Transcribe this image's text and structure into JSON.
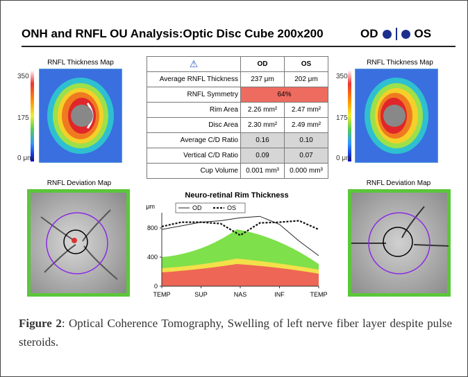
{
  "header": {
    "title": "ONH and RNFL OU Analysis:Optic Disc Cube 200x200",
    "od": "OD",
    "os": "OS"
  },
  "left_panel": {
    "thickness_title": "RNFL Thickness Map",
    "scale": [
      "350",
      "175",
      "0 μm"
    ],
    "deviation_title": "RNFL Deviation Map"
  },
  "right_panel": {
    "thickness_title": "RNFL Thickness Map",
    "scale": [
      "350",
      "175",
      "0 μm"
    ],
    "deviation_title": "RNFL Deviation Map"
  },
  "table": {
    "columns": [
      "OD",
      "OS"
    ],
    "rows": [
      [
        "Average RNFL Thickness",
        "237 μm",
        "202 μm"
      ],
      [
        "RNFL Symmetry",
        "64%"
      ],
      [
        "Rim Area",
        "2.26 mm²",
        "2.47 mm²"
      ],
      [
        "Disc Area",
        "2.30 mm²",
        "2.49 mm²"
      ],
      [
        "Average C/D Ratio",
        "0.16",
        "0.10"
      ],
      [
        "Vertical C/D Ratio",
        "0.09",
        "0.07"
      ],
      [
        "Cup Volume",
        "0.001 mm³",
        "0.000 mm³"
      ]
    ]
  },
  "rim_chart": {
    "type": "line",
    "title": "Neuro-retinal Rim Thickness",
    "y_unit": "μm",
    "x": [
      0,
      0.5,
      1,
      1.5,
      2,
      2.5,
      3,
      3.5,
      4
    ],
    "xlim": [
      0,
      4
    ],
    "xticks": [
      {
        "value": 0,
        "label": "TEMP"
      },
      {
        "value": 1,
        "label": "SUP"
      },
      {
        "value": 2,
        "label": "NAS"
      },
      {
        "value": 3,
        "label": "INF"
      },
      {
        "value": 4,
        "label": "TEMP"
      }
    ],
    "ylim": [
      0,
      1000
    ],
    "yticks": [
      0,
      400,
      800
    ],
    "series": [
      {
        "name": "OD",
        "color": "#222222",
        "style": "solid",
        "values": [
          780,
          830,
          880,
          900,
          940,
          960,
          850,
          620,
          420
        ]
      },
      {
        "name": "OS",
        "color": "#111111",
        "style": "dotted",
        "values": [
          820,
          880,
          880,
          860,
          700,
          870,
          880,
          900,
          780
        ]
      }
    ]
  },
  "caption": {
    "label": "Figure 2",
    "text": ": Optical Coherence Tomography, Swelling of left nerve fiber layer despite pulse steroids."
  }
}
